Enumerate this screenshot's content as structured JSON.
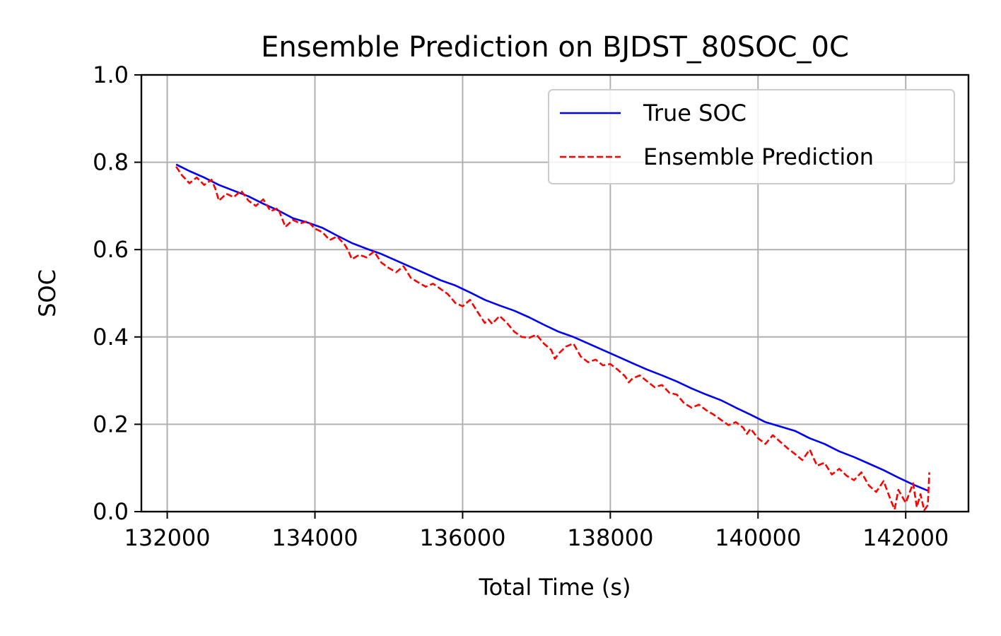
{
  "chart_data": {
    "type": "line",
    "title": "Ensemble Prediction on BJDST_80SOC_0C",
    "xlabel": "Total Time (s)",
    "ylabel": "SOC",
    "xlim": [
      131650,
      142850
    ],
    "ylim": [
      0.0,
      1.0
    ],
    "xticks": [
      132000,
      134000,
      136000,
      138000,
      140000,
      142000
    ],
    "yticks": [
      0.0,
      0.2,
      0.4,
      0.6,
      0.8,
      1.0
    ],
    "xtick_labels": [
      "132000",
      "134000",
      "136000",
      "138000",
      "140000",
      "142000"
    ],
    "ytick_labels": [
      "0.0",
      "0.2",
      "0.4",
      "0.6",
      "0.8",
      "1.0"
    ],
    "grid": true,
    "legend_position": "top-right",
    "series": [
      {
        "name": "True SOC",
        "color": "#0000ff",
        "style": "solid",
        "x": [
          132120,
          132300,
          132500,
          132700,
          132900,
          133100,
          133300,
          133500,
          133700,
          133900,
          134100,
          134300,
          134500,
          134700,
          134900,
          135100,
          135300,
          135500,
          135700,
          135900,
          136100,
          136300,
          136500,
          136700,
          136900,
          137100,
          137300,
          137500,
          137700,
          137900,
          138100,
          138300,
          138500,
          138700,
          138900,
          139100,
          139300,
          139500,
          139700,
          139900,
          140100,
          140300,
          140500,
          140700,
          140900,
          141100,
          141300,
          141500,
          141700,
          141900,
          142100,
          142300
        ],
        "y": [
          0.795,
          0.78,
          0.765,
          0.748,
          0.735,
          0.722,
          0.705,
          0.69,
          0.672,
          0.662,
          0.65,
          0.632,
          0.615,
          0.602,
          0.59,
          0.575,
          0.56,
          0.545,
          0.53,
          0.518,
          0.502,
          0.485,
          0.472,
          0.46,
          0.445,
          0.428,
          0.412,
          0.4,
          0.385,
          0.37,
          0.355,
          0.34,
          0.325,
          0.312,
          0.298,
          0.282,
          0.268,
          0.255,
          0.238,
          0.222,
          0.205,
          0.195,
          0.185,
          0.168,
          0.155,
          0.138,
          0.125,
          0.11,
          0.095,
          0.078,
          0.062,
          0.048
        ]
      },
      {
        "name": "Ensemble Prediction",
        "color": "#ff0000",
        "style": "dashed",
        "x": [
          132120,
          132200,
          132300,
          132400,
          132500,
          132600,
          132650,
          132700,
          132800,
          132900,
          133000,
          133100,
          133200,
          133300,
          133400,
          133500,
          133600,
          133700,
          133800,
          133900,
          134000,
          134100,
          134200,
          134300,
          134400,
          134450,
          134500,
          134600,
          134700,
          134800,
          134900,
          135000,
          135100,
          135200,
          135300,
          135400,
          135500,
          135600,
          135700,
          135800,
          135900,
          136000,
          136100,
          136200,
          136300,
          136350,
          136400,
          136500,
          136600,
          136700,
          136800,
          136900,
          137000,
          137100,
          137200,
          137250,
          137300,
          137400,
          137500,
          137600,
          137700,
          137800,
          137900,
          138000,
          138100,
          138200,
          138250,
          138300,
          138400,
          138500,
          138600,
          138700,
          138800,
          138900,
          139000,
          139100,
          139200,
          139300,
          139400,
          139500,
          139600,
          139700,
          139800,
          139850,
          139900,
          140000,
          140100,
          140200,
          140300,
          140400,
          140500,
          140600,
          140700,
          140800,
          140900,
          141000,
          141100,
          141200,
          141300,
          141400,
          141500,
          141600,
          141700,
          141800,
          141850,
          141900,
          142000,
          142100,
          142150,
          142200,
          142250,
          142300,
          142320
        ],
        "y": [
          0.79,
          0.77,
          0.752,
          0.765,
          0.748,
          0.76,
          0.74,
          0.712,
          0.728,
          0.72,
          0.735,
          0.712,
          0.7,
          0.715,
          0.688,
          0.695,
          0.652,
          0.668,
          0.66,
          0.665,
          0.648,
          0.64,
          0.622,
          0.63,
          0.612,
          0.598,
          0.578,
          0.588,
          0.582,
          0.596,
          0.57,
          0.558,
          0.548,
          0.562,
          0.535,
          0.525,
          0.515,
          0.522,
          0.51,
          0.498,
          0.478,
          0.47,
          0.485,
          0.458,
          0.432,
          0.44,
          0.43,
          0.448,
          0.432,
          0.412,
          0.4,
          0.398,
          0.405,
          0.385,
          0.37,
          0.35,
          0.362,
          0.378,
          0.385,
          0.355,
          0.342,
          0.348,
          0.335,
          0.338,
          0.325,
          0.31,
          0.296,
          0.305,
          0.312,
          0.298,
          0.285,
          0.29,
          0.272,
          0.268,
          0.248,
          0.238,
          0.245,
          0.232,
          0.222,
          0.21,
          0.198,
          0.205,
          0.192,
          0.178,
          0.19,
          0.168,
          0.155,
          0.175,
          0.16,
          0.145,
          0.132,
          0.118,
          0.142,
          0.105,
          0.112,
          0.085,
          0.098,
          0.082,
          0.072,
          0.09,
          0.06,
          0.045,
          0.07,
          0.025,
          0.005,
          0.05,
          0.02,
          0.065,
          0.01,
          0.04,
          0.003,
          0.015,
          0.09
        ]
      }
    ]
  }
}
